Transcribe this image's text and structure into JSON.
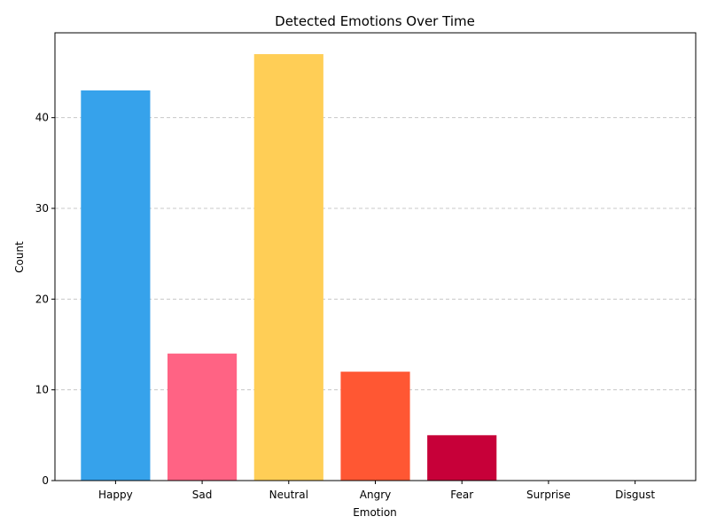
{
  "chart_data": {
    "type": "bar",
    "title": "Detected Emotions Over Time",
    "xlabel": "Emotion",
    "ylabel": "Count",
    "categories": [
      "Happy",
      "Sad",
      "Neutral",
      "Angry",
      "Fear",
      "Surprise",
      "Disgust"
    ],
    "values": [
      43,
      14,
      47,
      12,
      5,
      0,
      0
    ],
    "colors": [
      "#36A2EB",
      "#FF6384",
      "#FFCE56",
      "#FF5733",
      "#C70039",
      "#900C3F",
      "#581845"
    ],
    "ylim": [
      0,
      49.35
    ],
    "yticks": [
      0,
      10,
      20,
      30,
      40
    ],
    "grid": "y-dashed"
  }
}
